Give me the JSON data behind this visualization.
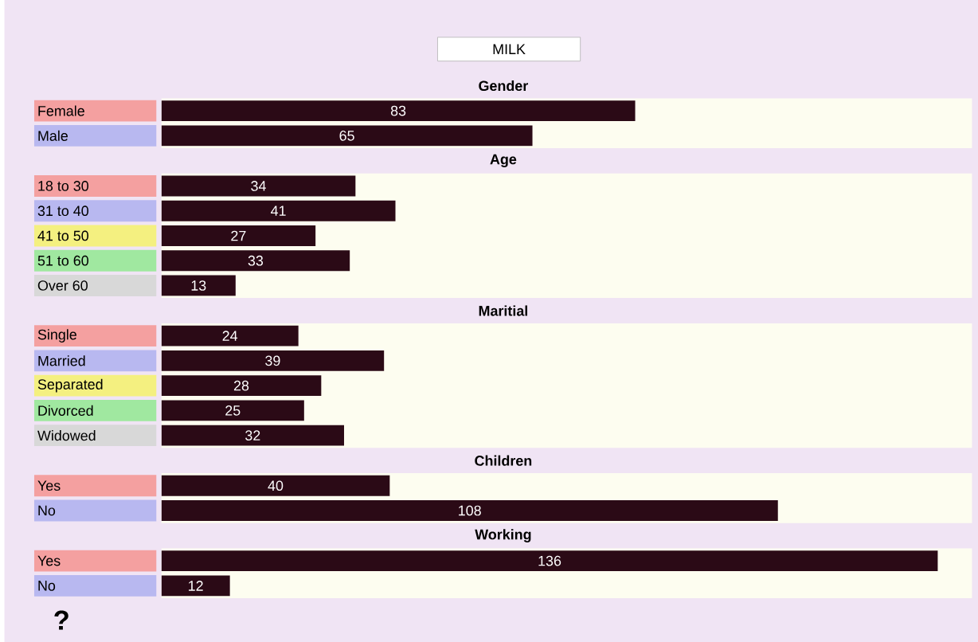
{
  "chart_data": [
    {
      "type": "bar",
      "orientation": "horizontal",
      "title": "Gender",
      "categories": [
        "Female",
        "Male"
      ],
      "values": [
        83,
        65
      ],
      "color": "#2b0a16",
      "xlim": [
        0,
        142
      ],
      "data_labels": true,
      "tick_labels": "y",
      "annotations": [
        "MILK"
      ]
    },
    {
      "type": "bar",
      "orientation": "horizontal",
      "title": "Age",
      "categories": [
        "18 to 30",
        "31 to 40",
        "41 to 50",
        "51 to 60",
        "Over 60"
      ],
      "values": [
        34,
        41,
        27,
        33,
        13
      ],
      "color": "#2b0a16",
      "xlim": [
        0,
        142
      ],
      "data_labels": true,
      "tick_labels": "y"
    },
    {
      "type": "bar",
      "orientation": "horizontal",
      "title": "Maritial",
      "categories": [
        "Single",
        "Married",
        "Separated",
        "Divorced",
        "Widowed"
      ],
      "values": [
        24,
        39,
        28,
        25,
        32
      ],
      "color": "#2b0a16",
      "xlim": [
        0,
        142
      ],
      "data_labels": true,
      "tick_labels": "y"
    },
    {
      "type": "bar",
      "orientation": "horizontal",
      "title": "Children",
      "categories": [
        "Yes",
        "No"
      ],
      "values": [
        40,
        108
      ],
      "color": "#2b0a16",
      "xlim": [
        0,
        142
      ],
      "data_labels": true,
      "tick_labels": "y"
    },
    {
      "type": "bar",
      "orientation": "horizontal",
      "title": "Working",
      "categories": [
        "Yes",
        "No"
      ],
      "values": [
        136,
        12
      ],
      "color": "#2b0a16",
      "xlim": [
        0,
        142
      ],
      "data_labels": true,
      "tick_labels": "y",
      "annotations": [
        "?"
      ]
    }
  ]
}
